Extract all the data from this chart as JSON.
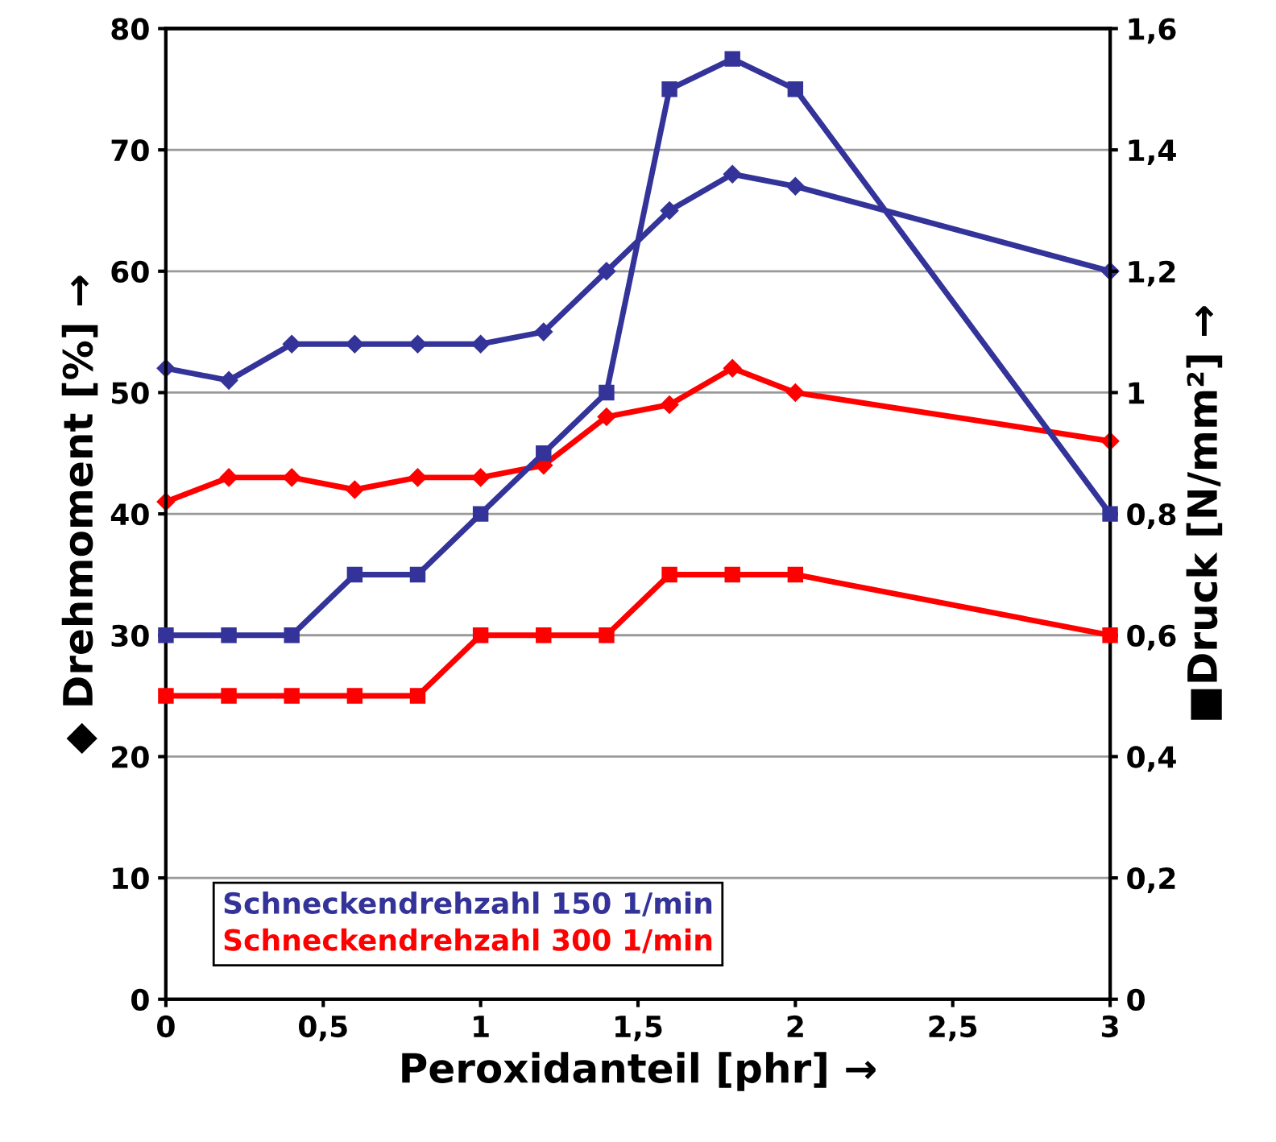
{
  "chart_data": {
    "type": "line",
    "xlabel": "Peroxidanteil [phr] →",
    "ylabel": "◆ Drehmoment [%] →",
    "y2label": "■Druck [N/mm²] →",
    "x": [
      0,
      0.2,
      0.4,
      0.6,
      0.8,
      1,
      1.2,
      1.4,
      1.6,
      1.8,
      2,
      3
    ],
    "series": [
      {
        "name": "Schneckendrehzahl 150 1/min",
        "color": "#333399",
        "marker": "diamond",
        "values": [
          52,
          51,
          54,
          54,
          54,
          54,
          55,
          60,
          65,
          68,
          67,
          60
        ]
      },
      {
        "color": "#333399",
        "marker": "square",
        "axis": "y2",
        "values": [
          0.6,
          0.6,
          0.6,
          0.7,
          0.7,
          0.8,
          0.9,
          1.0,
          1.5,
          1.55,
          1.5,
          0.8
        ]
      },
      {
        "name": "Schneckendrehzahl 300 1/min",
        "color": "#ff0000",
        "marker": "diamond",
        "values": [
          41,
          43,
          43,
          42,
          43,
          43,
          44,
          48,
          49,
          52,
          50,
          46
        ]
      },
      {
        "color": "#ff0000",
        "marker": "square",
        "axis": "y2",
        "values": [
          0.5,
          0.5,
          0.5,
          0.5,
          0.5,
          0.6,
          0.6,
          0.6,
          0.7,
          0.7,
          0.7,
          0.6
        ]
      }
    ],
    "xlim": [
      0,
      3
    ],
    "xticks": [
      0,
      {
        "value": 0.5,
        "label": "0,5"
      },
      1,
      {
        "value": 1.5,
        "label": "1,5"
      },
      2,
      {
        "value": 2.5,
        "label": "2,5"
      },
      3
    ],
    "ylim": [
      0,
      80
    ],
    "yticks": [
      0,
      10,
      20,
      30,
      40,
      50,
      60,
      70,
      80
    ],
    "y2lim": [
      0,
      1.6
    ],
    "y2ticks": [
      0,
      {
        "value": 0.2,
        "label": "0,2"
      },
      {
        "value": 0.4,
        "label": "0,4"
      },
      {
        "value": 0.6,
        "label": "0,6"
      },
      {
        "value": 0.8,
        "label": "0,8"
      },
      1,
      {
        "value": 1.2,
        "label": "1,2"
      },
      {
        "value": 1.4,
        "label": "1,4"
      },
      {
        "value": 1.6,
        "label": "1,6"
      }
    ],
    "grid": "y",
    "legend": "bottom",
    "line_style": "solid"
  }
}
